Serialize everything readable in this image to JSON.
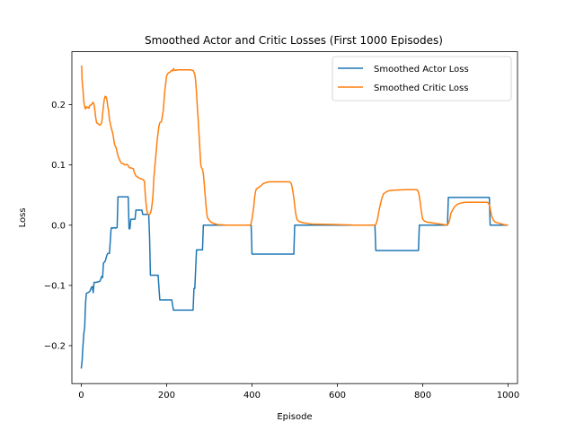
{
  "chart_data": {
    "type": "line",
    "title": "Smoothed Actor and Critic Losses (First 1000 Episodes)",
    "xlabel": "Episode",
    "ylabel": "Loss",
    "xlim": [
      -22,
      1022
    ],
    "ylim": [
      -0.263,
      0.288
    ],
    "xticks": [
      0,
      200,
      400,
      600,
      800,
      1000
    ],
    "yticks": [
      -0.2,
      -0.1,
      0.0,
      0.1,
      0.2
    ],
    "xtick_labels": [
      "0",
      "200",
      "400",
      "600",
      "800",
      "1000"
    ],
    "ytick_labels": [
      "−0.2",
      "−0.1",
      "0.0",
      "0.1",
      "0.2"
    ],
    "grid": false,
    "legend_position": "top-right",
    "series": [
      {
        "name": "Smoothed Actor Loss",
        "color": "#1f77b4",
        "x": [
          0,
          2,
          4,
          6,
          8,
          10,
          12,
          16,
          20,
          24,
          26,
          28,
          30,
          34,
          40,
          44,
          48,
          50,
          52,
          56,
          60,
          62,
          66,
          70,
          72,
          74,
          78,
          80,
          84,
          86,
          90,
          96,
          106,
          110,
          112,
          114,
          116,
          122,
          124,
          126,
          128,
          130,
          142,
          144,
          146,
          156,
          158,
          160,
          162,
          166,
          168,
          176,
          180,
          184,
          186,
          202,
          204,
          206,
          212,
          216,
          232,
          234,
          240,
          260,
          262,
          264,
          266,
          270,
          278,
          280,
          282,
          284,
          286,
          290,
          300,
          398,
          400,
          402,
          420,
          450,
          496,
          498,
          500,
          502,
          560,
          620,
          688,
          690,
          692,
          720,
          760,
          790,
          792,
          794,
          830,
          858,
          860,
          862,
          900,
          940,
          956,
          958,
          960,
          990,
          1000
        ],
        "y": [
          -0.238,
          -0.225,
          -0.2,
          -0.18,
          -0.17,
          -0.13,
          -0.113,
          -0.112,
          -0.11,
          -0.103,
          -0.102,
          -0.112,
          -0.095,
          -0.095,
          -0.094,
          -0.093,
          -0.085,
          -0.087,
          -0.063,
          -0.06,
          -0.05,
          -0.047,
          -0.047,
          -0.005,
          -0.004,
          -0.005,
          -0.004,
          -0.005,
          -0.004,
          0.047,
          0.047,
          0.047,
          0.047,
          0.047,
          -0.006,
          -0.006,
          0.01,
          0.01,
          0.01,
          0.01,
          0.025,
          0.025,
          0.025,
          0.018,
          0.018,
          0.018,
          0.018,
          -0.02,
          -0.083,
          -0.083,
          -0.083,
          -0.083,
          -0.083,
          -0.124,
          -0.124,
          -0.124,
          -0.124,
          -0.124,
          -0.124,
          -0.141,
          -0.141,
          -0.141,
          -0.141,
          -0.141,
          -0.141,
          -0.105,
          -0.105,
          -0.041,
          -0.041,
          -0.041,
          -0.041,
          -0.041,
          0.0,
          0.0,
          0.0,
          0.0,
          -0.048,
          -0.048,
          -0.048,
          -0.048,
          -0.048,
          -0.048,
          0.0,
          0.0,
          0.0,
          0.0,
          0.0,
          -0.042,
          -0.042,
          -0.042,
          -0.042,
          -0.042,
          0.0,
          0.0,
          0.0,
          0.0,
          0.046,
          0.046,
          0.046,
          0.046,
          0.046,
          0.0,
          0.0,
          0.0,
          0.0
        ]
      },
      {
        "name": "Smoothed Critic Loss",
        "color": "#ff7f0e",
        "x": [
          0,
          1,
          2,
          3,
          4,
          6,
          8,
          10,
          12,
          14,
          16,
          18,
          20,
          24,
          26,
          28,
          30,
          32,
          34,
          36,
          38,
          40,
          44,
          48,
          50,
          52,
          54,
          56,
          58,
          60,
          62,
          64,
          66,
          70,
          74,
          78,
          82,
          86,
          90,
          94,
          98,
          102,
          106,
          110,
          112,
          114,
          118,
          120,
          122,
          124,
          128,
          132,
          136,
          140,
          144,
          148,
          150,
          152,
          154,
          156,
          158,
          160,
          162,
          164,
          166,
          168,
          170,
          174,
          178,
          182,
          184,
          188,
          192,
          196,
          200,
          204,
          208,
          210,
          212,
          214,
          216,
          218,
          222,
          226,
          232,
          240,
          250,
          256,
          260,
          262,
          264,
          266,
          268,
          270,
          272,
          274,
          276,
          278,
          280,
          282,
          284,
          286,
          288,
          290,
          292,
          294,
          296,
          298,
          300,
          304,
          310,
          320,
          340,
          360,
          380,
          396,
          398,
          400,
          402,
          404,
          406,
          408,
          410,
          414,
          418,
          422,
          426,
          430,
          434,
          440,
          450,
          470,
          480,
          484,
          488,
          490,
          492,
          494,
          496,
          498,
          500,
          502,
          504,
          506,
          510,
          520,
          540,
          600,
          640,
          680,
          686,
          688,
          690,
          692,
          694,
          696,
          698,
          700,
          702,
          704,
          706,
          708,
          712,
          716,
          720,
          730,
          760,
          780,
          784,
          786,
          788,
          790,
          792,
          794,
          796,
          798,
          800,
          804,
          810,
          830,
          850,
          856,
          858,
          860,
          862,
          864,
          866,
          870,
          874,
          878,
          882,
          886,
          890,
          900,
          920,
          940,
          950,
          952,
          954,
          956,
          958,
          960,
          962,
          966,
          970,
          980,
          990,
          1000
        ],
        "y": [
          0.265,
          0.263,
          0.24,
          0.232,
          0.225,
          0.205,
          0.196,
          0.193,
          0.197,
          0.195,
          0.196,
          0.194,
          0.199,
          0.2,
          0.203,
          0.204,
          0.2,
          0.19,
          0.178,
          0.17,
          0.169,
          0.168,
          0.166,
          0.17,
          0.185,
          0.198,
          0.209,
          0.214,
          0.213,
          0.209,
          0.198,
          0.19,
          0.176,
          0.162,
          0.152,
          0.134,
          0.128,
          0.115,
          0.108,
          0.103,
          0.102,
          0.1,
          0.101,
          0.099,
          0.096,
          0.095,
          0.095,
          0.094,
          0.094,
          0.088,
          0.082,
          0.08,
          0.078,
          0.077,
          0.076,
          0.073,
          0.05,
          0.035,
          0.023,
          0.018,
          0.018,
          0.018,
          0.02,
          0.025,
          0.035,
          0.05,
          0.078,
          0.11,
          0.142,
          0.165,
          0.17,
          0.172,
          0.19,
          0.225,
          0.248,
          0.253,
          0.254,
          0.256,
          0.257,
          0.256,
          0.26,
          0.257,
          0.257,
          0.258,
          0.258,
          0.258,
          0.258,
          0.258,
          0.257,
          0.257,
          0.254,
          0.25,
          0.24,
          0.22,
          0.195,
          0.175,
          0.15,
          0.125,
          0.1,
          0.095,
          0.093,
          0.085,
          0.07,
          0.052,
          0.035,
          0.02,
          0.012,
          0.01,
          0.008,
          0.005,
          0.003,
          0.001,
          0.0,
          0.0,
          0.0,
          0.0,
          0.003,
          0.01,
          0.02,
          0.03,
          0.045,
          0.055,
          0.06,
          0.062,
          0.064,
          0.066,
          0.069,
          0.07,
          0.071,
          0.072,
          0.072,
          0.072,
          0.072,
          0.072,
          0.072,
          0.071,
          0.069,
          0.063,
          0.055,
          0.045,
          0.033,
          0.022,
          0.013,
          0.009,
          0.006,
          0.004,
          0.002,
          0.001,
          0.0,
          0.0,
          0.0,
          0.0,
          0.001,
          0.005,
          0.01,
          0.018,
          0.026,
          0.032,
          0.038,
          0.044,
          0.048,
          0.052,
          0.054,
          0.056,
          0.057,
          0.058,
          0.059,
          0.059,
          0.059,
          0.059,
          0.058,
          0.055,
          0.048,
          0.038,
          0.027,
          0.017,
          0.01,
          0.007,
          0.005,
          0.003,
          0.001,
          0.0,
          0.001,
          0.003,
          0.006,
          0.012,
          0.02,
          0.025,
          0.03,
          0.033,
          0.035,
          0.036,
          0.037,
          0.038,
          0.038,
          0.038,
          0.038,
          0.038,
          0.036,
          0.034,
          0.028,
          0.02,
          0.014,
          0.008,
          0.005,
          0.003,
          0.001,
          0.0
        ]
      }
    ]
  }
}
